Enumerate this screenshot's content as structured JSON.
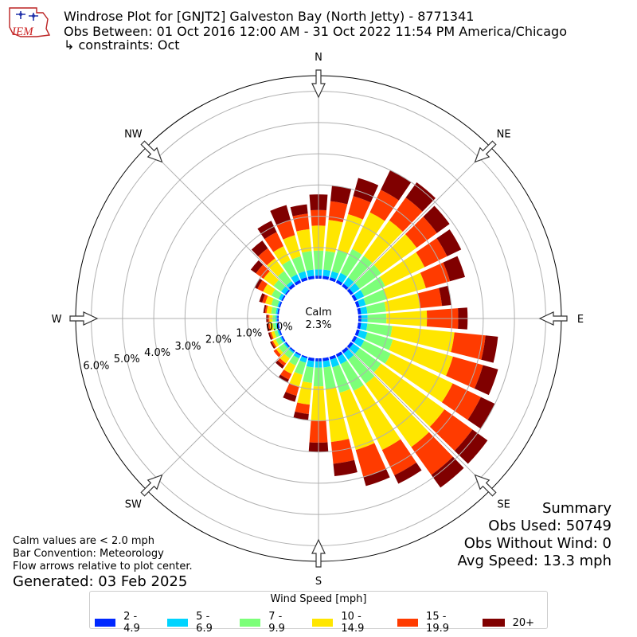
{
  "header": {
    "title_line1": "Windrose Plot for [GNJT2] Galveston Bay (North Jetty) - 8771341",
    "title_line2": "Obs Between: 01 Oct 2016 12:00 AM - 31 Oct 2022 11:54 PM America/Chicago",
    "title_line3": "↳ constraints: Oct",
    "logo_text": "IEM"
  },
  "summary": {
    "title": "Summary",
    "obs_used": "Obs Used: 50749",
    "obs_without_wind": "Obs Without Wind: 0",
    "avg_speed": "Avg Speed: 13.3 mph"
  },
  "notes": {
    "calm_note": "Calm values are < 2.0 mph",
    "bar_convention": "Bar Convention: Meteorology",
    "flow_arrows": "Flow arrows relative to plot center.",
    "generated": "Generated: 03 Feb 2025"
  },
  "chart_data": {
    "type": "windrose",
    "calm_label": "Calm",
    "calm_value": "2.3%",
    "calm_percent": 2.3,
    "directions": [
      "N",
      "NE",
      "E",
      "SE",
      "S",
      "SW",
      "W",
      "NW"
    ],
    "radial_ticks": [
      0,
      1,
      2,
      3,
      4,
      5,
      6
    ],
    "radial_tick_labels": [
      "0.0%",
      "1.0%",
      "2.0%",
      "3.0%",
      "4.0%",
      "5.0%",
      "6.0%"
    ],
    "rmax": 6.5,
    "legend_title": "Wind Speed [mph]",
    "colors": [
      "#0028ff",
      "#00d4ff",
      "#7cff79",
      "#ffe600",
      "#ff3b00",
      "#800000"
    ],
    "bins": [
      "2 - 4.9",
      "5 - 6.9",
      "7 - 9.9",
      "10 - 14.9",
      "15 - 19.9",
      "20+"
    ],
    "sectors": [
      {
        "dir": 0,
        "cumulative": [
          0.1,
          0.3,
          0.9,
          1.7,
          2.2,
          2.7
        ]
      },
      {
        "dir": 10,
        "cumulative": [
          0.1,
          0.3,
          0.9,
          1.9,
          2.5,
          3.0
        ]
      },
      {
        "dir": 20,
        "cumulative": [
          0.1,
          0.3,
          1.0,
          2.2,
          2.8,
          3.4
        ]
      },
      {
        "dir": 30,
        "cumulative": [
          0.1,
          0.35,
          1.2,
          2.5,
          3.3,
          4.0
        ]
      },
      {
        "dir": 40,
        "cumulative": [
          0.1,
          0.35,
          1.2,
          2.6,
          3.5,
          4.1
        ]
      },
      {
        "dir": 50,
        "cumulative": [
          0.1,
          0.35,
          1.2,
          2.6,
          3.4,
          3.9
        ]
      },
      {
        "dir": 60,
        "cumulative": [
          0.1,
          0.35,
          1.1,
          2.5,
          3.3,
          3.8
        ]
      },
      {
        "dir": 70,
        "cumulative": [
          0.1,
          0.3,
          1.0,
          2.3,
          3.1,
          3.6
        ]
      },
      {
        "dir": 80,
        "cumulative": [
          0.1,
          0.3,
          0.9,
          2.0,
          2.7,
          3.0
        ]
      },
      {
        "dir": 90,
        "cumulative": [
          0.1,
          0.3,
          0.9,
          2.2,
          3.2,
          3.5
        ]
      },
      {
        "dir": 100,
        "cumulative": [
          0.1,
          0.3,
          1.1,
          3.1,
          4.1,
          4.5
        ]
      },
      {
        "dir": 110,
        "cumulative": [
          0.1,
          0.35,
          1.2,
          3.2,
          4.2,
          4.7
        ]
      },
      {
        "dir": 120,
        "cumulative": [
          0.1,
          0.35,
          1.3,
          3.5,
          4.5,
          5.0
        ]
      },
      {
        "dir": 130,
        "cumulative": [
          0.1,
          0.35,
          1.2,
          3.7,
          4.8,
          5.4
        ]
      },
      {
        "dir": 140,
        "cumulative": [
          0.1,
          0.35,
          1.3,
          3.8,
          4.9,
          5.4
        ]
      },
      {
        "dir": 150,
        "cumulative": [
          0.1,
          0.35,
          1.3,
          3.4,
          4.3,
          4.6
        ]
      },
      {
        "dir": 160,
        "cumulative": [
          0.1,
          0.35,
          1.2,
          3.1,
          4.0,
          4.3
        ]
      },
      {
        "dir": 170,
        "cumulative": [
          0.1,
          0.3,
          1.0,
          2.7,
          3.4,
          3.8
        ]
      },
      {
        "dir": 180,
        "cumulative": [
          0.1,
          0.3,
          0.9,
          2.0,
          2.7,
          3.0
        ]
      },
      {
        "dir": 190,
        "cumulative": [
          0.1,
          0.3,
          0.8,
          1.5,
          1.8,
          2.0
        ]
      },
      {
        "dir": 200,
        "cumulative": [
          0.05,
          0.2,
          0.6,
          1.0,
          1.3,
          1.5
        ]
      },
      {
        "dir": 210,
        "cumulative": [
          0.05,
          0.15,
          0.4,
          0.7,
          0.9,
          1.0
        ]
      },
      {
        "dir": 220,
        "cumulative": [
          0.05,
          0.1,
          0.3,
          0.5,
          0.6,
          0.7
        ]
      },
      {
        "dir": 230,
        "cumulative": [
          0.05,
          0.1,
          0.3,
          0.4,
          0.5,
          0.5
        ]
      },
      {
        "dir": 240,
        "cumulative": [
          0.05,
          0.1,
          0.25,
          0.35,
          0.4,
          0.45
        ]
      },
      {
        "dir": 250,
        "cumulative": [
          0.05,
          0.1,
          0.2,
          0.3,
          0.35,
          0.4
        ]
      },
      {
        "dir": 260,
        "cumulative": [
          0.05,
          0.1,
          0.2,
          0.3,
          0.35,
          0.4
        ]
      },
      {
        "dir": 270,
        "cumulative": [
          0.05,
          0.1,
          0.2,
          0.3,
          0.35,
          0.4
        ]
      },
      {
        "dir": 280,
        "cumulative": [
          0.05,
          0.1,
          0.25,
          0.4,
          0.45,
          0.5
        ]
      },
      {
        "dir": 290,
        "cumulative": [
          0.05,
          0.1,
          0.3,
          0.5,
          0.6,
          0.7
        ]
      },
      {
        "dir": 300,
        "cumulative": [
          0.05,
          0.15,
          0.4,
          0.7,
          0.9,
          1.0
        ]
      },
      {
        "dir": 310,
        "cumulative": [
          0.05,
          0.2,
          0.5,
          0.9,
          1.2,
          1.4
        ]
      },
      {
        "dir": 320,
        "cumulative": [
          0.1,
          0.2,
          0.6,
          1.1,
          1.5,
          1.8
        ]
      },
      {
        "dir": 330,
        "cumulative": [
          0.1,
          0.3,
          0.8,
          1.3,
          1.8,
          2.2
        ]
      },
      {
        "dir": 340,
        "cumulative": [
          0.1,
          0.3,
          0.8,
          1.5,
          2.0,
          2.5
        ]
      },
      {
        "dir": 350,
        "cumulative": [
          0.1,
          0.3,
          0.9,
          1.6,
          2.1,
          2.4
        ]
      }
    ]
  }
}
